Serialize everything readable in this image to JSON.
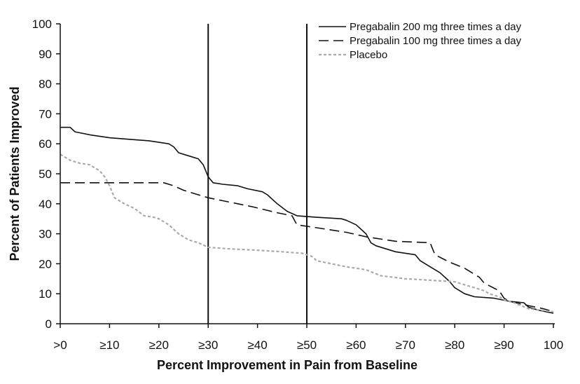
{
  "chart_data": {
    "type": "line",
    "xlabel": "Percent Improvement in Pain from Baseline",
    "ylabel": "Percent of Patients Improved",
    "xlim": [
      0,
      100
    ],
    "ylim": [
      0,
      100
    ],
    "x_tick_labels": [
      ">0",
      "≥10",
      "≥20",
      "≥30",
      "≥40",
      "≥50",
      "≥60",
      "≥70",
      "≥80",
      "≥90",
      "100"
    ],
    "y_ticks": [
      0,
      10,
      20,
      30,
      40,
      50,
      60,
      70,
      80,
      90,
      100
    ],
    "reference_lines_x": [
      30,
      50
    ],
    "legend_position": "top-right",
    "grid": false,
    "series": [
      {
        "name": "Pregabalin 200 mg three times a day",
        "color": "#111111",
        "style": "solid",
        "points": [
          [
            0,
            65.5
          ],
          [
            2,
            65.5
          ],
          [
            3,
            64
          ],
          [
            6,
            63
          ],
          [
            10,
            62
          ],
          [
            14,
            61.5
          ],
          [
            18,
            61
          ],
          [
            20,
            60.5
          ],
          [
            22,
            60
          ],
          [
            23,
            59
          ],
          [
            24,
            57
          ],
          [
            26,
            56
          ],
          [
            28,
            55
          ],
          [
            29,
            53
          ],
          [
            30,
            49
          ],
          [
            31,
            47
          ],
          [
            33,
            46.5
          ],
          [
            36,
            46
          ],
          [
            38,
            45
          ],
          [
            41,
            44
          ],
          [
            42,
            43
          ],
          [
            44,
            40
          ],
          [
            46,
            37.5
          ],
          [
            48,
            36
          ],
          [
            52,
            35.5
          ],
          [
            57,
            35
          ],
          [
            58,
            34.5
          ],
          [
            60,
            33
          ],
          [
            62,
            30
          ],
          [
            63,
            27
          ],
          [
            64,
            26
          ],
          [
            68,
            24
          ],
          [
            72,
            23
          ],
          [
            73,
            21
          ],
          [
            75,
            19
          ],
          [
            77,
            17
          ],
          [
            79,
            14
          ],
          [
            80,
            12
          ],
          [
            82,
            10
          ],
          [
            84,
            9
          ],
          [
            88,
            8.5
          ],
          [
            91,
            7.5
          ],
          [
            94,
            7
          ],
          [
            95,
            5.5
          ],
          [
            97,
            4.5
          ],
          [
            100,
            3.5
          ]
        ]
      },
      {
        "name": "Pregabalin 100 mg three times a day",
        "color": "#111111",
        "style": "dashed",
        "points": [
          [
            0,
            47
          ],
          [
            10,
            47
          ],
          [
            20,
            47
          ],
          [
            21,
            47
          ],
          [
            23,
            46
          ],
          [
            25,
            44.5
          ],
          [
            28,
            43
          ],
          [
            30,
            42
          ],
          [
            33,
            41
          ],
          [
            36,
            40
          ],
          [
            39,
            39
          ],
          [
            44,
            37
          ],
          [
            47,
            36
          ],
          [
            48,
            33
          ],
          [
            52,
            32
          ],
          [
            58,
            30.5
          ],
          [
            62,
            29
          ],
          [
            66,
            28
          ],
          [
            68,
            27.5
          ],
          [
            75,
            27
          ],
          [
            76,
            23
          ],
          [
            79,
            20.5
          ],
          [
            82,
            18.5
          ],
          [
            85,
            15.5
          ],
          [
            86,
            13.5
          ],
          [
            89,
            11
          ],
          [
            90,
            8.5
          ],
          [
            91,
            7.5
          ],
          [
            95,
            6
          ],
          [
            98,
            5
          ],
          [
            100,
            4
          ]
        ]
      },
      {
        "name": "Placebo",
        "color": "#aaaaaa",
        "style": "dotted",
        "points": [
          [
            0,
            56.5
          ],
          [
            2,
            54.5
          ],
          [
            4,
            53.5
          ],
          [
            6,
            53
          ],
          [
            8,
            51
          ],
          [
            9,
            49
          ],
          [
            10,
            46
          ],
          [
            11,
            42
          ],
          [
            13,
            40
          ],
          [
            15,
            38.5
          ],
          [
            17,
            36
          ],
          [
            19,
            35.5
          ],
          [
            20,
            35
          ],
          [
            22,
            33
          ],
          [
            24,
            30
          ],
          [
            26,
            28
          ],
          [
            28,
            27
          ],
          [
            30,
            25.5
          ],
          [
            34,
            25
          ],
          [
            40,
            24.5
          ],
          [
            45,
            24
          ],
          [
            49,
            23.5
          ],
          [
            51,
            22.5
          ],
          [
            52,
            21
          ],
          [
            55,
            20
          ],
          [
            58,
            19
          ],
          [
            62,
            18
          ],
          [
            65,
            16
          ],
          [
            70,
            15
          ],
          [
            75,
            14.5
          ],
          [
            80,
            14
          ],
          [
            82,
            13
          ],
          [
            84,
            12
          ],
          [
            86,
            11
          ],
          [
            87,
            10
          ],
          [
            89,
            9
          ],
          [
            90,
            8
          ],
          [
            92,
            7
          ],
          [
            95,
            5
          ],
          [
            100,
            4
          ]
        ]
      }
    ]
  }
}
